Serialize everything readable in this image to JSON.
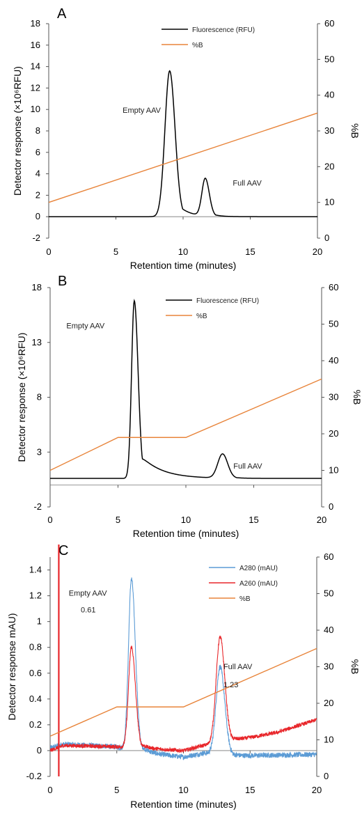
{
  "chart_data": [
    {
      "type": "line",
      "panel": "A",
      "xlabel": "Retention time (minutes)",
      "ylabel": "Detector response (×10⁶RFU)",
      "y2label": "%B",
      "xlim": [
        0,
        20
      ],
      "ylim": [
        -2,
        18
      ],
      "y2lim": [
        0,
        60
      ],
      "xticks": [
        "0",
        "5",
        "10",
        "15",
        "20"
      ],
      "yticks": [
        "-2",
        "0",
        "2",
        "4",
        "6",
        "8",
        "10",
        "12",
        "14",
        "16",
        "18"
      ],
      "y2ticks": [
        "0",
        "10",
        "20",
        "30",
        "40",
        "50",
        "60"
      ],
      "legend": [
        "Fluorescence (RFU)",
        "%B"
      ],
      "colors": {
        "fluorescence": "#000000",
        "percentB": "#e8843a"
      },
      "annotations": [
        {
          "text": "Empty AAV",
          "x": 5.5,
          "y": 9.7
        },
        {
          "text": "Full AAV",
          "x": 13.7,
          "y": 2.9
        }
      ],
      "series": [
        {
          "name": "Fluorescence (RFU)",
          "axis": "left",
          "peaks": [
            {
              "center": 9.0,
              "height": 13.6,
              "sigma_left": 0.35,
              "sigma_right": 0.4,
              "tail": 0.8
            },
            {
              "center": 11.65,
              "height": 3.5,
              "sigma_left": 0.25,
              "sigma_right": 0.3,
              "tail": 0.5
            }
          ],
          "baseline": 0.0
        },
        {
          "name": "%B",
          "axis": "right",
          "points": [
            [
              0,
              10
            ],
            [
              20,
              35
            ]
          ]
        }
      ]
    },
    {
      "type": "line",
      "panel": "B",
      "xlabel": "Retention time (minutes)",
      "ylabel": "Detector response (×10⁶RFU)",
      "y2label": "%B",
      "xlim": [
        0,
        20
      ],
      "ylim": [
        -2,
        18
      ],
      "y2lim": [
        0,
        60
      ],
      "xticks": [
        "0",
        "5",
        "10",
        "15",
        "20"
      ],
      "yticks": [
        "-2",
        "3",
        "8",
        "13",
        "18"
      ],
      "y2ticks": [
        "0",
        "10",
        "20",
        "30",
        "40",
        "50",
        "60"
      ],
      "legend": [
        "Fluorescence (RFU)",
        "%B"
      ],
      "colors": {
        "fluorescence": "#000000",
        "percentB": "#e8843a"
      },
      "annotations": [
        {
          "text": "Empty AAV",
          "x": 1.2,
          "y": 14.3
        },
        {
          "text": "Full AAV",
          "x": 13.5,
          "y": 1.5
        }
      ],
      "series": [
        {
          "name": "Fluorescence (RFU)",
          "axis": "left",
          "peaks": [
            {
              "center": 6.2,
              "height": 16.2,
              "sigma_left": 0.2,
              "sigma_right": 0.28,
              "tail": 1.5
            },
            {
              "center": 12.7,
              "height": 2.2,
              "sigma_left": 0.35,
              "sigma_right": 0.38,
              "tail": 0.5
            }
          ],
          "baseline": 0.6
        },
        {
          "name": "%B",
          "axis": "right",
          "points": [
            [
              0,
              10
            ],
            [
              5,
              19
            ],
            [
              10,
              19
            ],
            [
              20,
              35
            ]
          ]
        }
      ]
    },
    {
      "type": "line",
      "panel": "C",
      "xlabel": "Retention time (minutes)",
      "ylabel": "Detector response mAU)",
      "y2label": "%B",
      "xlim": [
        0,
        20
      ],
      "ylim": [
        -0.2,
        1.5
      ],
      "y2lim": [
        0,
        60
      ],
      "xticks": [
        "0",
        "5",
        "10",
        "15",
        "20"
      ],
      "yticks": [
        "-0.2",
        "0",
        "0.2",
        "0.4",
        "0.6",
        "0.8",
        "1",
        "1.2",
        "1.4"
      ],
      "y2ticks": [
        "0",
        "10",
        "20",
        "30",
        "40",
        "50",
        "60"
      ],
      "legend": [
        "A280 (mAU)",
        "A260 (mAU)",
        "%B"
      ],
      "colors": {
        "a280": "#5b9bd5",
        "a260": "#e8262a",
        "percentB": "#e8843a"
      },
      "annotations": [
        {
          "text": "Empty AAV",
          "x": 1.4,
          "y": 1.2
        },
        {
          "text": "0.61",
          "x": 2.3,
          "y": 1.07
        },
        {
          "text": "Full AAV",
          "x": 13.0,
          "y": 0.63
        },
        {
          "text": "1.23",
          "x": 13.0,
          "y": 0.49
        }
      ],
      "series": [
        {
          "name": "A280 (mAU)",
          "axis": "left",
          "peaks": [
            {
              "center": 6.1,
              "height": 1.33,
              "sigma_left": 0.22,
              "sigma_right": 0.3,
              "tail": 0.5
            },
            {
              "center": 12.75,
              "height": 0.68,
              "sigma_left": 0.3,
              "sigma_right": 0.35,
              "tail": 0.4
            }
          ],
          "baseline_points": [
            [
              0,
              0.02
            ],
            [
              1,
              0.05
            ],
            [
              5,
              0.03
            ],
            [
              6.5,
              -0.01
            ],
            [
              10,
              -0.05
            ],
            [
              11.5,
              -0.02
            ],
            [
              14,
              -0.04
            ],
            [
              20,
              -0.03
            ]
          ],
          "noise": 0.02
        },
        {
          "name": "A260 (mAU)",
          "axis": "left",
          "peaks": [
            {
              "center": 6.1,
              "height": 0.78,
              "sigma_left": 0.22,
              "sigma_right": 0.3,
              "tail": 0.5
            },
            {
              "center": 12.75,
              "height": 0.82,
              "sigma_left": 0.3,
              "sigma_right": 0.35,
              "tail": 0.5
            }
          ],
          "baseline_points": [
            [
              0,
              0.0
            ],
            [
              1,
              0.04
            ],
            [
              5,
              0.03
            ],
            [
              6.5,
              0.02
            ],
            [
              10,
              0.0
            ],
            [
              11.5,
              0.04
            ],
            [
              14,
              0.08
            ],
            [
              17,
              0.14
            ],
            [
              20,
              0.24
            ]
          ],
          "injection_spike": {
            "x": 0.65,
            "top": 1.5,
            "bottom": -0.2
          },
          "noise": 0.015
        },
        {
          "name": "%B",
          "axis": "right",
          "points": [
            [
              0,
              11
            ],
            [
              5,
              19
            ],
            [
              10,
              19
            ],
            [
              20,
              35
            ]
          ]
        }
      ]
    }
  ]
}
